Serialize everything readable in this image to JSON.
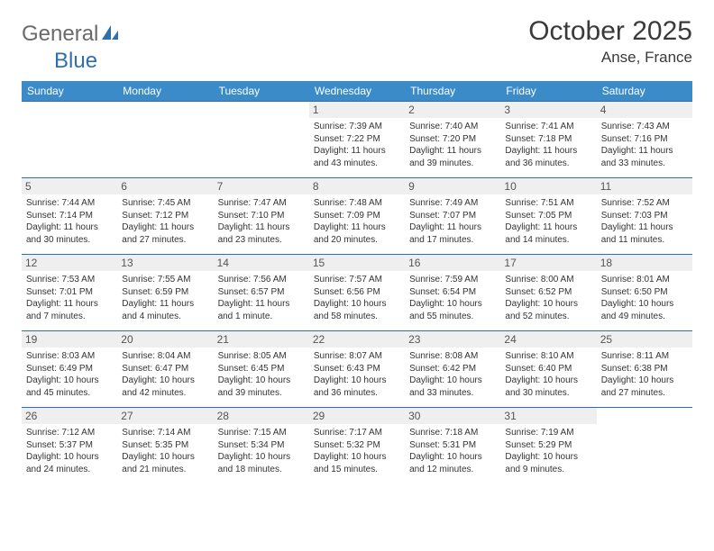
{
  "brand": {
    "part1": "General",
    "part2": "Blue"
  },
  "title": {
    "month": "October 2025",
    "location": "Anse, France"
  },
  "colors": {
    "header_bg": "#3b8bc8",
    "row_border": "#2f6fb0",
    "daynum_bg": "#efefef",
    "text": "#333333",
    "logo_gray": "#6a6a6a",
    "logo_blue": "#2f6fb0"
  },
  "days_of_week": [
    "Sunday",
    "Monday",
    "Tuesday",
    "Wednesday",
    "Thursday",
    "Friday",
    "Saturday"
  ],
  "weeks": [
    [
      {
        "num": "",
        "sunrise": "",
        "sunset": "",
        "daylight": ""
      },
      {
        "num": "",
        "sunrise": "",
        "sunset": "",
        "daylight": ""
      },
      {
        "num": "",
        "sunrise": "",
        "sunset": "",
        "daylight": ""
      },
      {
        "num": "1",
        "sunrise": "Sunrise: 7:39 AM",
        "sunset": "Sunset: 7:22 PM",
        "daylight": "Daylight: 11 hours and 43 minutes."
      },
      {
        "num": "2",
        "sunrise": "Sunrise: 7:40 AM",
        "sunset": "Sunset: 7:20 PM",
        "daylight": "Daylight: 11 hours and 39 minutes."
      },
      {
        "num": "3",
        "sunrise": "Sunrise: 7:41 AM",
        "sunset": "Sunset: 7:18 PM",
        "daylight": "Daylight: 11 hours and 36 minutes."
      },
      {
        "num": "4",
        "sunrise": "Sunrise: 7:43 AM",
        "sunset": "Sunset: 7:16 PM",
        "daylight": "Daylight: 11 hours and 33 minutes."
      }
    ],
    [
      {
        "num": "5",
        "sunrise": "Sunrise: 7:44 AM",
        "sunset": "Sunset: 7:14 PM",
        "daylight": "Daylight: 11 hours and 30 minutes."
      },
      {
        "num": "6",
        "sunrise": "Sunrise: 7:45 AM",
        "sunset": "Sunset: 7:12 PM",
        "daylight": "Daylight: 11 hours and 27 minutes."
      },
      {
        "num": "7",
        "sunrise": "Sunrise: 7:47 AM",
        "sunset": "Sunset: 7:10 PM",
        "daylight": "Daylight: 11 hours and 23 minutes."
      },
      {
        "num": "8",
        "sunrise": "Sunrise: 7:48 AM",
        "sunset": "Sunset: 7:09 PM",
        "daylight": "Daylight: 11 hours and 20 minutes."
      },
      {
        "num": "9",
        "sunrise": "Sunrise: 7:49 AM",
        "sunset": "Sunset: 7:07 PM",
        "daylight": "Daylight: 11 hours and 17 minutes."
      },
      {
        "num": "10",
        "sunrise": "Sunrise: 7:51 AM",
        "sunset": "Sunset: 7:05 PM",
        "daylight": "Daylight: 11 hours and 14 minutes."
      },
      {
        "num": "11",
        "sunrise": "Sunrise: 7:52 AM",
        "sunset": "Sunset: 7:03 PM",
        "daylight": "Daylight: 11 hours and 11 minutes."
      }
    ],
    [
      {
        "num": "12",
        "sunrise": "Sunrise: 7:53 AM",
        "sunset": "Sunset: 7:01 PM",
        "daylight": "Daylight: 11 hours and 7 minutes."
      },
      {
        "num": "13",
        "sunrise": "Sunrise: 7:55 AM",
        "sunset": "Sunset: 6:59 PM",
        "daylight": "Daylight: 11 hours and 4 minutes."
      },
      {
        "num": "14",
        "sunrise": "Sunrise: 7:56 AM",
        "sunset": "Sunset: 6:57 PM",
        "daylight": "Daylight: 11 hours and 1 minute."
      },
      {
        "num": "15",
        "sunrise": "Sunrise: 7:57 AM",
        "sunset": "Sunset: 6:56 PM",
        "daylight": "Daylight: 10 hours and 58 minutes."
      },
      {
        "num": "16",
        "sunrise": "Sunrise: 7:59 AM",
        "sunset": "Sunset: 6:54 PM",
        "daylight": "Daylight: 10 hours and 55 minutes."
      },
      {
        "num": "17",
        "sunrise": "Sunrise: 8:00 AM",
        "sunset": "Sunset: 6:52 PM",
        "daylight": "Daylight: 10 hours and 52 minutes."
      },
      {
        "num": "18",
        "sunrise": "Sunrise: 8:01 AM",
        "sunset": "Sunset: 6:50 PM",
        "daylight": "Daylight: 10 hours and 49 minutes."
      }
    ],
    [
      {
        "num": "19",
        "sunrise": "Sunrise: 8:03 AM",
        "sunset": "Sunset: 6:49 PM",
        "daylight": "Daylight: 10 hours and 45 minutes."
      },
      {
        "num": "20",
        "sunrise": "Sunrise: 8:04 AM",
        "sunset": "Sunset: 6:47 PM",
        "daylight": "Daylight: 10 hours and 42 minutes."
      },
      {
        "num": "21",
        "sunrise": "Sunrise: 8:05 AM",
        "sunset": "Sunset: 6:45 PM",
        "daylight": "Daylight: 10 hours and 39 minutes."
      },
      {
        "num": "22",
        "sunrise": "Sunrise: 8:07 AM",
        "sunset": "Sunset: 6:43 PM",
        "daylight": "Daylight: 10 hours and 36 minutes."
      },
      {
        "num": "23",
        "sunrise": "Sunrise: 8:08 AM",
        "sunset": "Sunset: 6:42 PM",
        "daylight": "Daylight: 10 hours and 33 minutes."
      },
      {
        "num": "24",
        "sunrise": "Sunrise: 8:10 AM",
        "sunset": "Sunset: 6:40 PM",
        "daylight": "Daylight: 10 hours and 30 minutes."
      },
      {
        "num": "25",
        "sunrise": "Sunrise: 8:11 AM",
        "sunset": "Sunset: 6:38 PM",
        "daylight": "Daylight: 10 hours and 27 minutes."
      }
    ],
    [
      {
        "num": "26",
        "sunrise": "Sunrise: 7:12 AM",
        "sunset": "Sunset: 5:37 PM",
        "daylight": "Daylight: 10 hours and 24 minutes."
      },
      {
        "num": "27",
        "sunrise": "Sunrise: 7:14 AM",
        "sunset": "Sunset: 5:35 PM",
        "daylight": "Daylight: 10 hours and 21 minutes."
      },
      {
        "num": "28",
        "sunrise": "Sunrise: 7:15 AM",
        "sunset": "Sunset: 5:34 PM",
        "daylight": "Daylight: 10 hours and 18 minutes."
      },
      {
        "num": "29",
        "sunrise": "Sunrise: 7:17 AM",
        "sunset": "Sunset: 5:32 PM",
        "daylight": "Daylight: 10 hours and 15 minutes."
      },
      {
        "num": "30",
        "sunrise": "Sunrise: 7:18 AM",
        "sunset": "Sunset: 5:31 PM",
        "daylight": "Daylight: 10 hours and 12 minutes."
      },
      {
        "num": "31",
        "sunrise": "Sunrise: 7:19 AM",
        "sunset": "Sunset: 5:29 PM",
        "daylight": "Daylight: 10 hours and 9 minutes."
      },
      {
        "num": "",
        "sunrise": "",
        "sunset": "",
        "daylight": ""
      }
    ]
  ]
}
